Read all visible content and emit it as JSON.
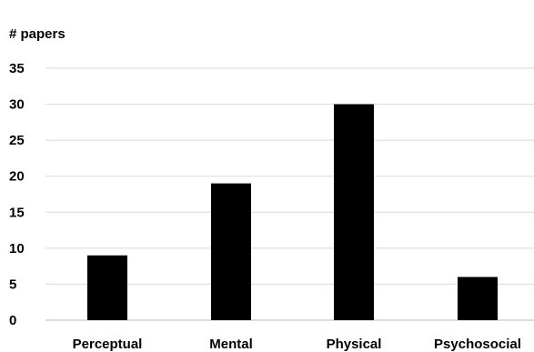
{
  "chart_data": {
    "type": "bar",
    "title": "",
    "xlabel": "",
    "ylabel": "# papers",
    "categories": [
      "Perceptual",
      "Mental",
      "Physical",
      "Psychosocial"
    ],
    "values": [
      9,
      19,
      30,
      6
    ],
    "ylim": [
      0,
      35
    ],
    "yticks": [
      0,
      5,
      10,
      15,
      20,
      25,
      30,
      35
    ],
    "grid": true,
    "bar_color": "#000000",
    "grid_color": "#d9d9d9"
  }
}
